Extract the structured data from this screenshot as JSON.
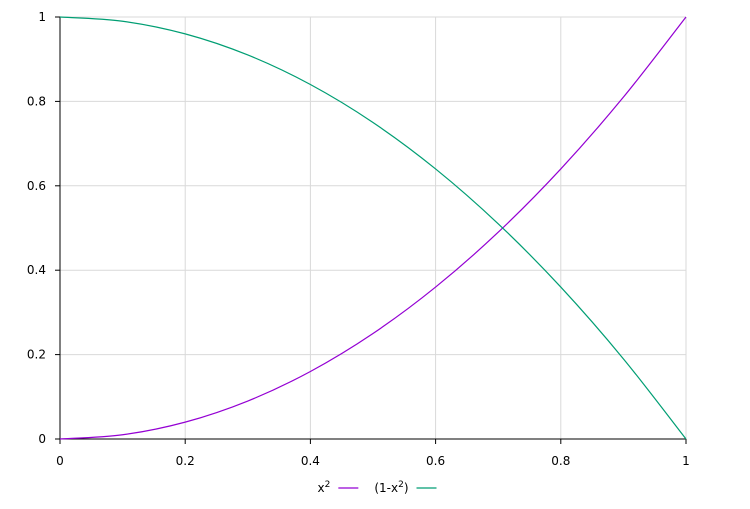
{
  "chart_data": {
    "type": "line",
    "title": "",
    "xlabel": "",
    "ylabel": "",
    "xlim": [
      0,
      1
    ],
    "ylim": [
      0,
      1
    ],
    "x_ticks": [
      0,
      0.2,
      0.4,
      0.6,
      0.8,
      1
    ],
    "y_ticks": [
      0,
      0.2,
      0.4,
      0.6,
      0.8,
      1
    ],
    "x_tick_labels": [
      "0",
      "0.2",
      "0.4",
      "0.6",
      "0.8",
      "1"
    ],
    "y_tick_labels": [
      "0",
      "0.2",
      "0.4",
      "0.6",
      "0.8",
      "1"
    ],
    "grid": true,
    "legend_position": "bottom-center",
    "x": [
      0,
      0.1,
      0.2,
      0.3,
      0.4,
      0.5,
      0.6,
      0.7,
      0.8,
      0.9,
      1
    ],
    "series": [
      {
        "name": "x2",
        "label_base": "x",
        "label_sup": "2",
        "label_suffix": "",
        "color": "#9400d3",
        "values": [
          0,
          0.01,
          0.04,
          0.09,
          0.16,
          0.25,
          0.36,
          0.49,
          0.64,
          0.81,
          1
        ]
      },
      {
        "name": "(1-x2)",
        "label_base": "(1-x",
        "label_sup": "2",
        "label_suffix": ")",
        "color": "#009e73",
        "values": [
          1,
          0.99,
          0.96,
          0.91,
          0.84,
          0.75,
          0.64,
          0.51,
          0.36,
          0.19,
          0
        ]
      }
    ]
  }
}
